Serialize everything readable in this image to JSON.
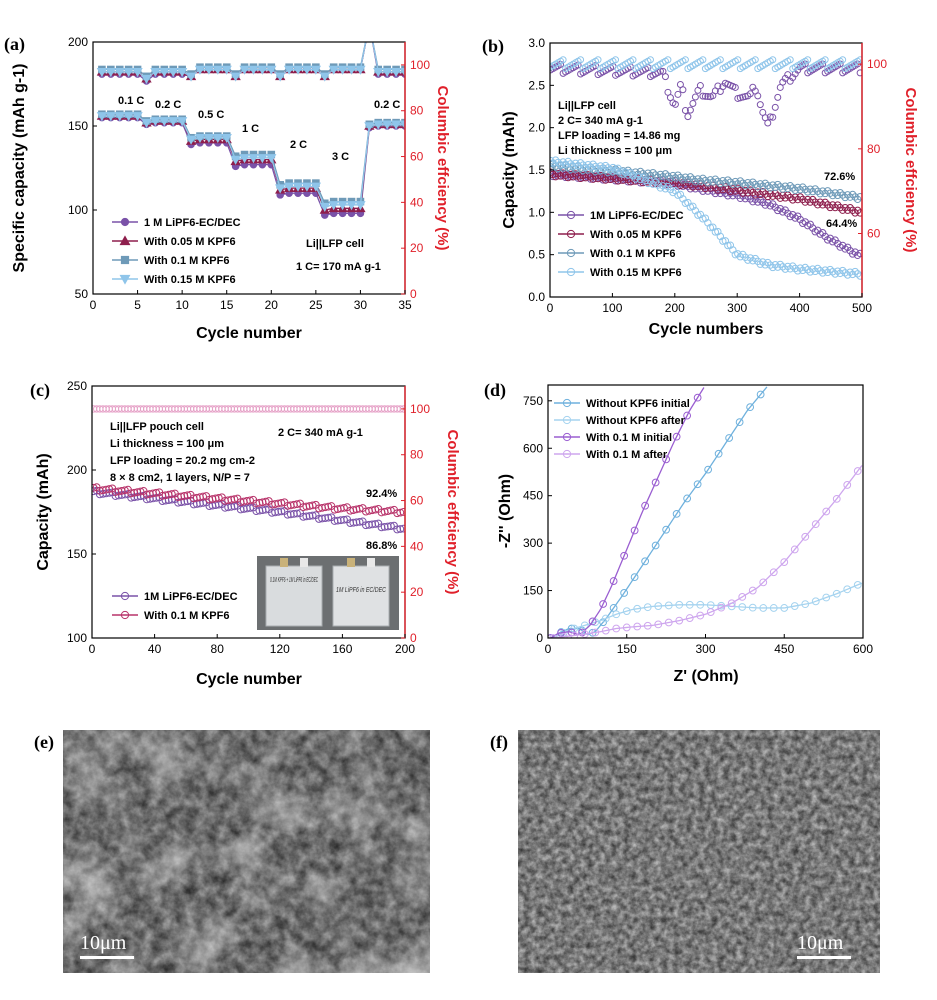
{
  "chart_data": [
    {
      "id": "a",
      "panel_label": "(a)",
      "type": "scatter",
      "title": "",
      "xlabel": "Cycle number",
      "ylabel": "Specific capacity (mAh g-1)",
      "y2label": "Columbic effciency (%)",
      "xlim": [
        0,
        35
      ],
      "ylim": [
        50,
        200
      ],
      "y2lim": [
        0,
        110
      ],
      "xticks": [
        "0",
        "5",
        "10",
        "15",
        "20",
        "25",
        "30",
        "35"
      ],
      "yticks": [
        "50",
        "100",
        "150",
        "200"
      ],
      "y2ticks": [
        "0",
        "20",
        "40",
        "60",
        "80",
        "100"
      ],
      "rate_labels": [
        "0.1 C",
        "0.2 C",
        "0.5 C",
        "1 C",
        "2 C",
        "3 C",
        "0.2 C"
      ],
      "annotations": [
        "Li||LFP cell",
        "1 C= 170 mA g-1"
      ],
      "series": [
        {
          "name": "1 M LiPF6-EC/DEC",
          "color": "#7a52a8",
          "marker": "circle",
          "capacity_by_rate": [
            155,
            152,
            140,
            127,
            110,
            98,
            150
          ],
          "ce_by_rate": [
            96,
            96,
            98,
            98,
            98,
            98,
            96
          ]
        },
        {
          "name": "With 0.05 M KPF6",
          "color": "#8e1f4d",
          "marker": "triangle",
          "capacity_by_rate": [
            156,
            153,
            142,
            130,
            113,
            101,
            151
          ],
          "ce_by_rate": [
            97,
            97,
            98,
            98,
            98,
            98,
            97
          ]
        },
        {
          "name": "With 0.1 M KPF6",
          "color": "#6e9ab8",
          "marker": "square",
          "capacity_by_rate": [
            157,
            154,
            144,
            133,
            116,
            105,
            152
          ],
          "ce_by_rate": [
            98,
            98,
            99,
            99,
            99,
            99,
            98
          ]
        },
        {
          "name": "With 0.15 M KPF6",
          "color": "#8fc5ea",
          "marker": "triangle-down",
          "capacity_by_rate": [
            156,
            153,
            143,
            131,
            114,
            103,
            151
          ],
          "ce_by_rate": [
            97,
            97,
            98,
            98,
            98,
            98,
            97
          ]
        }
      ]
    },
    {
      "id": "b",
      "panel_label": "(b)",
      "type": "scatter",
      "xlabel": "Cycle numbers",
      "ylabel": "Capacity (mAh)",
      "y2label": "Columbic effciency (%)",
      "xlim": [
        0,
        500
      ],
      "ylim": [
        0,
        3.0
      ],
      "y2lim": [
        45,
        105
      ],
      "xticks": [
        "0",
        "100",
        "200",
        "300",
        "400",
        "500"
      ],
      "yticks": [
        "0.0",
        "0.5",
        "1.0",
        "1.5",
        "2.0",
        "2.5",
        "3.0"
      ],
      "y2ticks": [
        "60",
        "80",
        "100"
      ],
      "annotations": [
        "Li||LFP cell",
        "2 C= 340 mA g-1",
        "LFP loading = 14.86 mg",
        "Li thickness = 100 μm"
      ],
      "retention_labels": [
        "72.6%",
        "64.4%"
      ],
      "series": [
        {
          "name": "1M LiPF6-EC/DEC",
          "color": "#7a52a8",
          "x": [
            0,
            100,
            200,
            240,
            300,
            350,
            400,
            440,
            480,
            500
          ],
          "y": [
            1.45,
            1.4,
            1.34,
            1.28,
            1.2,
            1.1,
            0.92,
            0.72,
            0.55,
            0.48
          ]
        },
        {
          "name": "With 0.05 M KPF6",
          "color": "#8e1f4d",
          "x": [
            0,
            100,
            200,
            300,
            400,
            500
          ],
          "y": [
            1.45,
            1.4,
            1.35,
            1.26,
            1.16,
            1.0
          ]
        },
        {
          "name": "With 0.1 M KPF6",
          "color": "#6e9ab8",
          "x": [
            0,
            100,
            200,
            240,
            300,
            400,
            500
          ],
          "y": [
            1.55,
            1.49,
            1.42,
            1.38,
            1.35,
            1.28,
            1.17
          ]
        },
        {
          "name": "With 0.15 M KPF6",
          "color": "#8fc5ea",
          "x": [
            0,
            100,
            200,
            250,
            300,
            350,
            400,
            450,
            500
          ],
          "y": [
            1.6,
            1.52,
            1.25,
            0.9,
            0.5,
            0.38,
            0.33,
            0.3,
            0.27
          ]
        }
      ],
      "ce_series": [
        {
          "name": "1M LiPF6-EC/DEC CE",
          "color": "#7a52a8",
          "x": [
            0,
            180,
            200,
            210,
            220,
            240,
            260,
            280,
            300,
            320,
            330,
            340,
            350,
            370,
            400,
            500
          ],
          "y": [
            99,
            98,
            90,
            95,
            88,
            94,
            92,
            96,
            93,
            92,
            95,
            89,
            85,
            95,
            99,
            99
          ]
        },
        {
          "name": "With 0.1 M KPF6 CE",
          "color": "#8fc5ea",
          "x": [
            0,
            100,
            200,
            300,
            400,
            500
          ],
          "y": [
            100,
            100,
            100,
            100,
            100,
            100
          ]
        }
      ]
    },
    {
      "id": "c",
      "panel_label": "(c)",
      "type": "scatter",
      "xlabel": "Cycle number",
      "ylabel": "Capacity (mAh)",
      "y2label": "Columbic effciency (%)",
      "xlim": [
        0,
        200
      ],
      "ylim": [
        100,
        250
      ],
      "y2lim": [
        0,
        110
      ],
      "xticks": [
        "0",
        "40",
        "80",
        "120",
        "160",
        "200"
      ],
      "yticks": [
        "100",
        "150",
        "200",
        "250"
      ],
      "y2ticks": [
        "0",
        "20",
        "40",
        "60",
        "80",
        "100"
      ],
      "annotations": [
        "Li||LFP pouch cell",
        "Li thickness = 100 μm",
        "LFP loading = 20.2 mg cm-2",
        "8 × 8 cm2, 1 layers, N/P = 7",
        "2 C= 340 mA g-1"
      ],
      "retention_labels": [
        "92.4%",
        "86.8%"
      ],
      "inset_labels": [
        "0.1M KPF6 + 1M LiPF6 in EC/DEC",
        "1M LiPF6 in EC/DEC"
      ],
      "series": [
        {
          "name": "1M LiPF6-EC/DEC",
          "color": "#7a52a8",
          "x": [
            0,
            40,
            80,
            120,
            160,
            200
          ],
          "y": [
            187,
            183,
            179,
            175,
            170,
            165
          ]
        },
        {
          "name": "With 0.1 M KPF6",
          "color": "#b8336a",
          "x": [
            0,
            40,
            80,
            120,
            160,
            200
          ],
          "y": [
            189,
            186,
            183,
            180,
            177,
            175
          ]
        }
      ],
      "ce_series": [
        {
          "name": "CE",
          "color": "#e6a3c8",
          "x": [
            0,
            200
          ],
          "y": [
            100,
            100
          ]
        }
      ]
    },
    {
      "id": "d",
      "panel_label": "(d)",
      "type": "scatter",
      "xlabel": "Z' (Ohm)",
      "ylabel": "-Z'' (Ohm)",
      "xlim": [
        0,
        600
      ],
      "ylim": [
        0,
        800
      ],
      "xticks": [
        "0",
        "150",
        "300",
        "450",
        "600"
      ],
      "yticks": [
        "0",
        "150",
        "300",
        "450",
        "600",
        "750"
      ],
      "series": [
        {
          "name": "Without KPF6 initial",
          "color": "#6fb1dd",
          "x": [
            5,
            20,
            40,
            60,
            75,
            90,
            110,
            140,
            180,
            220,
            260,
            300,
            340,
            380,
            420
          ],
          "y": [
            0,
            15,
            30,
            30,
            10,
            20,
            60,
            130,
            230,
            330,
            430,
            520,
            620,
            720,
            800
          ]
        },
        {
          "name": "Without KPF6 after",
          "color": "#a5d3ef",
          "x": [
            10,
            40,
            70,
            100,
            130,
            160,
            200,
            250,
            300,
            350,
            400,
            450,
            500,
            550,
            600
          ],
          "y": [
            0,
            25,
            40,
            55,
            75,
            90,
            100,
            105,
            105,
            100,
            95,
            95,
            110,
            140,
            175
          ]
        },
        {
          "name": "With 0.1 M initial",
          "color": "#9a5ed1",
          "x": [
            5,
            20,
            40,
            60,
            80,
            100,
            120,
            150,
            180,
            210,
            240,
            270,
            300
          ],
          "y": [
            0,
            15,
            20,
            10,
            40,
            90,
            160,
            280,
            400,
            510,
            620,
            720,
            800
          ]
        },
        {
          "name": "With 0.1 M after",
          "color": "#cea6ee",
          "x": [
            10,
            60,
            100,
            130,
            160,
            200,
            250,
            300,
            350,
            400,
            450,
            500,
            550,
            600
          ],
          "y": [
            0,
            10,
            20,
            30,
            35,
            40,
            55,
            75,
            110,
            160,
            240,
            340,
            440,
            550
          ]
        }
      ]
    }
  ],
  "sem": [
    {
      "panel_label": "(e)",
      "scale_label": "10μm"
    },
    {
      "panel_label": "(f)",
      "scale_label": "10μm"
    }
  ]
}
